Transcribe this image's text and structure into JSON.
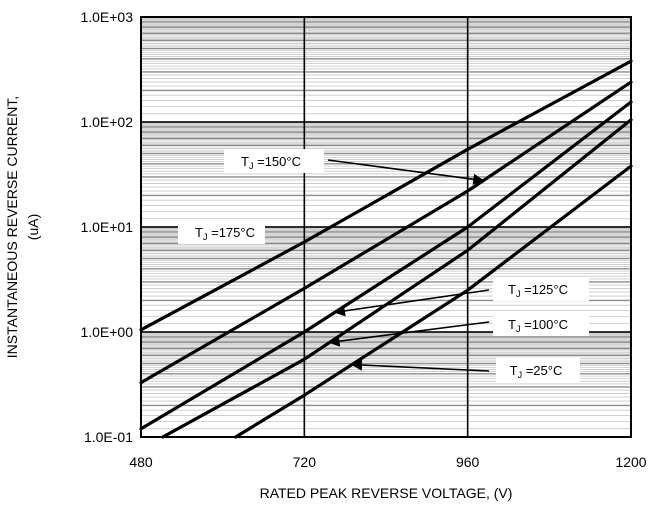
{
  "chart_data": {
    "type": "line",
    "title": "",
    "xlabel": "RATED PEAK REVERSE VOLTAGE, (V)",
    "ylabel_line1": "INSTANTANEOUS REVERSE CURRENT,",
    "ylabel_line2": "(uA)",
    "xlim": [
      480,
      1200
    ],
    "ylim": [
      0.1,
      1000
    ],
    "yscale": "log",
    "grid": true,
    "x_ticks": [
      480,
      720,
      960,
      1200
    ],
    "x_tick_labels": [
      "480",
      "720",
      "960",
      "1200"
    ],
    "y_ticks": [
      0.1,
      1,
      10,
      100,
      1000
    ],
    "y_tick_labels": [
      "1.0E-01",
      "1.0E+00",
      "1.0E+01",
      "1.0E+02",
      "1.0E+03"
    ],
    "series": [
      {
        "name": "TJ =175°C",
        "x": [
          480,
          720,
          960,
          1200
        ],
        "y": [
          1.05,
          7.2,
          55,
          380
        ]
      },
      {
        "name": "TJ =150°C",
        "x": [
          480,
          720,
          960,
          1200
        ],
        "y": [
          0.33,
          2.6,
          22,
          240
        ]
      },
      {
        "name": "TJ =125°C",
        "x": [
          480,
          720,
          960,
          1200
        ],
        "y": [
          0.12,
          1.0,
          10,
          155
        ]
      },
      {
        "name": "TJ =100°C",
        "x": [
          512,
          720,
          960,
          1200
        ],
        "y": [
          0.1,
          0.55,
          6,
          105
        ]
      },
      {
        "name": "TJ =25°C",
        "x": [
          619,
          720,
          960,
          1200
        ],
        "y": [
          0.1,
          0.25,
          2.5,
          38
        ]
      }
    ],
    "annotations": [
      {
        "prefix": "T",
        "sub": "J",
        "suffix": " =175°C",
        "series": 0
      },
      {
        "prefix": "T",
        "sub": "J",
        "suffix": " =150°C",
        "series": 1
      },
      {
        "prefix": "T",
        "sub": "J",
        "suffix": " =125°C",
        "series": 2
      },
      {
        "prefix": "T",
        "sub": "J",
        "suffix": " =100°C",
        "series": 3
      },
      {
        "prefix": "T",
        "sub": "J",
        "suffix": " =25°C",
        "series": 4
      }
    ]
  }
}
